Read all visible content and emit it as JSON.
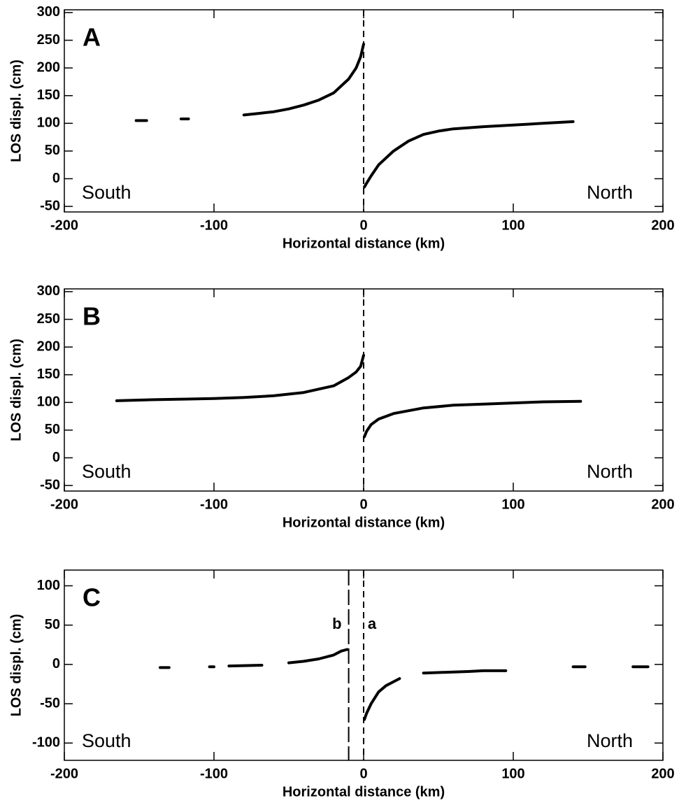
{
  "chart_data": [
    {
      "type": "line",
      "title": "A",
      "xlabel": "Horizontal distance (km)",
      "ylabel": "LOS displ. (cm)",
      "color": "#000000",
      "annotations": [
        "South",
        "North"
      ],
      "vlines": [
        {
          "x": 0,
          "style": "dash"
        }
      ],
      "xlim": [
        -200,
        200
      ],
      "xticks": [
        -200,
        -100,
        0,
        100,
        200
      ],
      "ylim": [
        -60,
        305
      ],
      "yticks": [
        -50,
        0,
        50,
        100,
        150,
        200,
        250,
        300
      ],
      "x": [
        -152,
        -145,
        -135,
        -122,
        -117,
        -100,
        -80,
        -70,
        -60,
        -50,
        -40,
        -30,
        -20,
        -10,
        -5,
        -2,
        0,
        0.2,
        0.5,
        2,
        5,
        10,
        20,
        30,
        40,
        50,
        60,
        80,
        100,
        120,
        140
      ],
      "values": [
        105,
        105,
        null,
        108,
        108,
        null,
        115,
        118,
        121,
        126,
        133,
        142,
        155,
        180,
        200,
        220,
        243,
        null,
        -15,
        -8,
        5,
        25,
        50,
        68,
        80,
        86,
        90,
        94,
        97,
        100,
        103
      ]
    },
    {
      "type": "line",
      "title": "B",
      "xlabel": "Horizontal distance (km)",
      "ylabel": "LOS displ. (cm)",
      "color": "#000000",
      "annotations": [
        "South",
        "North"
      ],
      "vlines": [
        {
          "x": 0,
          "style": "dash"
        }
      ],
      "xlim": [
        -200,
        200
      ],
      "xticks": [
        -200,
        -100,
        0,
        100,
        200
      ],
      "ylim": [
        -60,
        305
      ],
      "yticks": [
        -50,
        0,
        50,
        100,
        150,
        200,
        250,
        300
      ],
      "x": [
        -165,
        -140,
        -120,
        -100,
        -80,
        -60,
        -40,
        -20,
        -10,
        -5,
        -2,
        0,
        0.2,
        0.5,
        2,
        5,
        10,
        20,
        40,
        60,
        80,
        100,
        120,
        145
      ],
      "values": [
        103,
        105,
        106,
        107,
        109,
        112,
        118,
        130,
        145,
        155,
        165,
        185,
        null,
        38,
        48,
        60,
        70,
        80,
        90,
        95,
        97,
        99,
        101,
        102
      ]
    },
    {
      "type": "line",
      "title": "C",
      "xlabel": "Horizontal distance (km)",
      "ylabel": "LOS displ. (cm)",
      "color": "#000000",
      "annotations": [
        "South",
        "North"
      ],
      "vlines": [
        {
          "x": -10,
          "style": "longdash",
          "label": "b"
        },
        {
          "x": 0,
          "style": "dash",
          "label": "a"
        }
      ],
      "xlim": [
        -200,
        200
      ],
      "xticks": [
        -200,
        -100,
        0,
        100,
        200
      ],
      "ylim": [
        -122,
        120
      ],
      "yticks": [
        -100,
        -50,
        0,
        50,
        100
      ],
      "x": [
        -136,
        -130,
        -115,
        -103,
        -100,
        -95,
        -90,
        -68,
        -60,
        -50,
        -40,
        -30,
        -20,
        -15,
        -11,
        -5,
        0.5,
        2,
        5,
        10,
        15,
        20,
        24,
        32,
        40,
        55,
        70,
        80,
        95,
        120,
        140,
        148,
        165,
        180,
        190
      ],
      "values": [
        -4,
        -4,
        null,
        -3,
        -3,
        null,
        -2,
        -1,
        null,
        2,
        4,
        7,
        12,
        17,
        19,
        null,
        -70,
        -62,
        -50,
        -35,
        -27,
        -22,
        -18,
        null,
        -11,
        -10,
        -9,
        -8,
        -8,
        null,
        -3,
        -3,
        null,
        -3,
        -3
      ]
    }
  ]
}
